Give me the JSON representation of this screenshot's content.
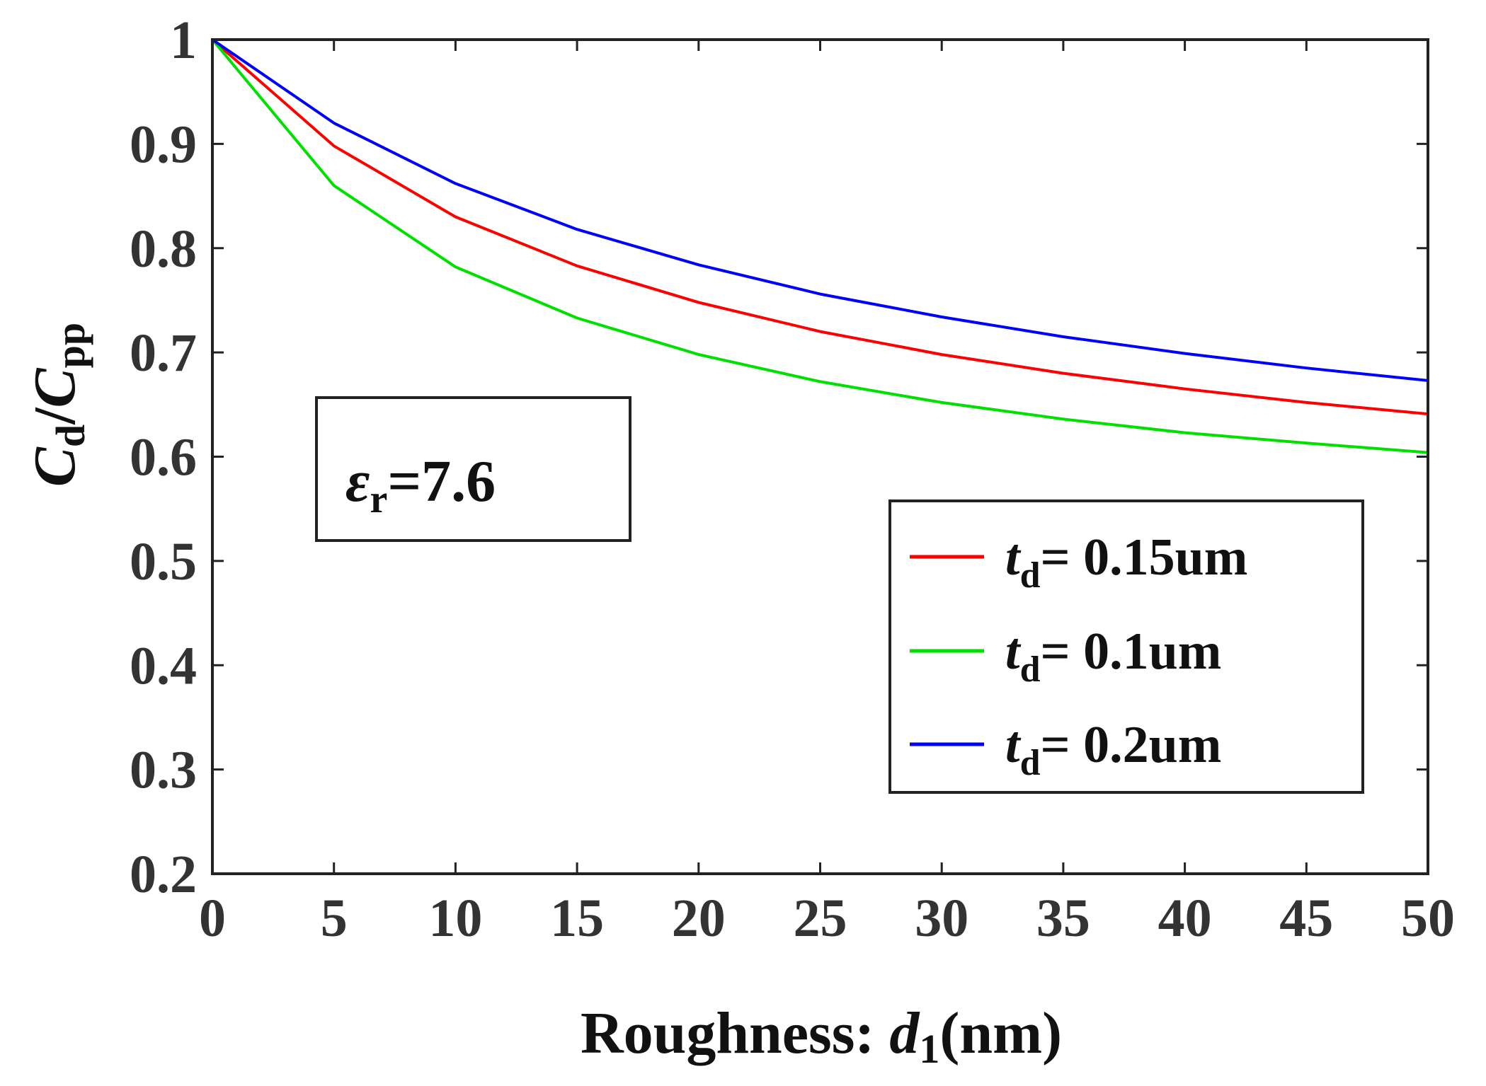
{
  "chart_data": {
    "type": "line",
    "xlabel": {
      "main": "Roughness: ",
      "var": "d",
      "sub": "1",
      "unit": "(nm)"
    },
    "ylabel": {
      "c1": "C",
      "s1": "d",
      "slash": "/",
      "c2": "C",
      "s2": "pp"
    },
    "xlim": [
      0,
      50
    ],
    "ylim": [
      0.2,
      1
    ],
    "xticks": [
      0,
      5,
      10,
      15,
      20,
      25,
      30,
      35,
      40,
      45,
      50
    ],
    "yticks": [
      0.2,
      0.3,
      0.4,
      0.5,
      0.6,
      0.7,
      0.8,
      0.9,
      1
    ],
    "x": [
      0,
      5,
      10,
      15,
      20,
      25,
      30,
      35,
      40,
      45,
      50
    ],
    "series": [
      {
        "name": "t_d= 0.15um",
        "legend_var": "t",
        "legend_sub": "d",
        "legend_rest": "= 0.15um",
        "color": "#ff0000",
        "values": [
          1.0,
          0.898,
          0.83,
          0.783,
          0.748,
          0.72,
          0.698,
          0.68,
          0.665,
          0.652,
          0.641
        ]
      },
      {
        "name": "t_d= 0.1um",
        "legend_var": "t",
        "legend_sub": "d",
        "legend_rest": "= 0.1um",
        "color": "#00e000",
        "values": [
          1.0,
          0.86,
          0.782,
          0.733,
          0.698,
          0.672,
          0.652,
          0.636,
          0.623,
          0.613,
          0.604
        ]
      },
      {
        "name": "t_d= 0.2um",
        "legend_var": "t",
        "legend_sub": "d",
        "legend_rest": "= 0.2um",
        "color": "#0000ff",
        "values": [
          1.0,
          0.92,
          0.862,
          0.818,
          0.784,
          0.756,
          0.734,
          0.715,
          0.699,
          0.685,
          0.673
        ]
      }
    ],
    "legend": {
      "placement": "lower-right",
      "order": [
        0,
        1,
        2
      ]
    },
    "annotation": {
      "var": "ε",
      "sub": "r",
      "rest": "=7.6",
      "placement": "middle-left",
      "boxed": true
    },
    "grid": false
  }
}
